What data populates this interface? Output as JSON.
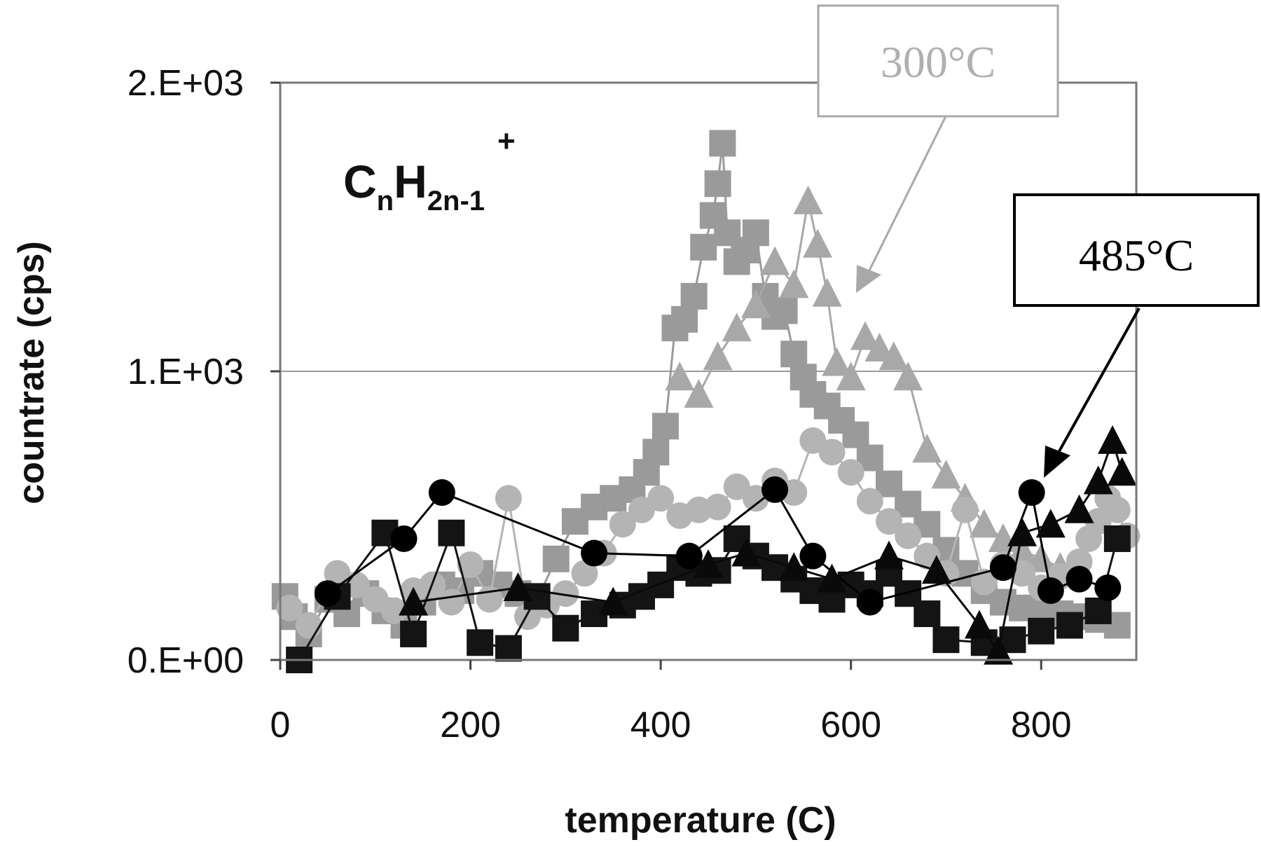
{
  "chart_data": {
    "type": "scatter",
    "title": "",
    "species_label": {
      "base": "C",
      "sub1": "n",
      "mid": "H",
      "sub2": "2n-1",
      "sup": "+"
    },
    "xlabel": "temperature  (C)",
    "ylabel": "countrate  (cps)",
    "xlim": [
      0,
      900
    ],
    "ylim": [
      0,
      2000
    ],
    "x_ticks": [
      0,
      200,
      400,
      600,
      800
    ],
    "x_tick_labels": [
      "0",
      "200",
      "400",
      "600",
      "800"
    ],
    "y_ticks": [
      0,
      1000,
      2000
    ],
    "y_tick_labels": [
      "0.E+00",
      "1.E+03",
      "2.E+03"
    ],
    "grid": "horizontal",
    "annotations": [
      {
        "text": "300°C",
        "color": "#b0b0b0",
        "arrow_to": {
          "x": 610,
          "y": 1280
        }
      },
      {
        "text": "485°C",
        "color": "#000000",
        "arrow_to": {
          "x": 800,
          "y": 640
        }
      }
    ],
    "series": [
      {
        "marker": "square",
        "color": "#9a9a9a",
        "points": [
          [
            5,
            220
          ],
          [
            15,
            150
          ],
          [
            30,
            90
          ],
          [
            50,
            210
          ],
          [
            70,
            160
          ],
          [
            90,
            230
          ],
          [
            110,
            170
          ],
          [
            130,
            120
          ],
          [
            150,
            200
          ],
          [
            170,
            260
          ],
          [
            190,
            240
          ],
          [
            210,
            300
          ],
          [
            230,
            260
          ],
          [
            250,
            230
          ],
          [
            270,
            210
          ],
          [
            290,
            350
          ],
          [
            310,
            480
          ],
          [
            330,
            530
          ],
          [
            350,
            560
          ],
          [
            370,
            590
          ],
          [
            385,
            650
          ],
          [
            395,
            720
          ],
          [
            405,
            810
          ],
          [
            415,
            1150
          ],
          [
            425,
            1180
          ],
          [
            435,
            1260
          ],
          [
            445,
            1430
          ],
          [
            455,
            1540
          ],
          [
            460,
            1650
          ],
          [
            465,
            1790
          ],
          [
            470,
            1480
          ],
          [
            480,
            1380
          ],
          [
            490,
            1420
          ],
          [
            500,
            1480
          ],
          [
            510,
            1260
          ],
          [
            520,
            1190
          ],
          [
            530,
            1210
          ],
          [
            540,
            1060
          ],
          [
            550,
            980
          ],
          [
            560,
            920
          ],
          [
            575,
            880
          ],
          [
            590,
            830
          ],
          [
            605,
            780
          ],
          [
            620,
            700
          ],
          [
            640,
            610
          ],
          [
            660,
            540
          ],
          [
            680,
            470
          ],
          [
            700,
            380
          ],
          [
            720,
            300
          ],
          [
            740,
            240
          ],
          [
            760,
            200
          ],
          [
            780,
            180
          ],
          [
            800,
            170
          ],
          [
            820,
            160
          ],
          [
            840,
            150
          ],
          [
            860,
            140
          ],
          [
            880,
            120
          ]
        ]
      },
      {
        "marker": "triangle",
        "color": "#a8a8a8",
        "points": [
          [
            420,
            980
          ],
          [
            440,
            920
          ],
          [
            460,
            1050
          ],
          [
            480,
            1150
          ],
          [
            500,
            1230
          ],
          [
            520,
            1380
          ],
          [
            540,
            1300
          ],
          [
            555,
            1590
          ],
          [
            565,
            1440
          ],
          [
            575,
            1270
          ],
          [
            585,
            1030
          ],
          [
            600,
            980
          ],
          [
            615,
            1120
          ],
          [
            630,
            1080
          ],
          [
            645,
            1050
          ],
          [
            660,
            980
          ],
          [
            680,
            730
          ],
          [
            700,
            640
          ],
          [
            720,
            560
          ],
          [
            740,
            470
          ],
          [
            760,
            420
          ],
          [
            780,
            380
          ],
          [
            800,
            350
          ],
          [
            820,
            320
          ]
        ]
      },
      {
        "marker": "circle",
        "color": "#b4b4b4",
        "points": [
          [
            10,
            180
          ],
          [
            30,
            120
          ],
          [
            60,
            300
          ],
          [
            80,
            260
          ],
          [
            100,
            210
          ],
          [
            120,
            170
          ],
          [
            140,
            240
          ],
          [
            160,
            260
          ],
          [
            180,
            200
          ],
          [
            200,
            330
          ],
          [
            220,
            210
          ],
          [
            240,
            560
          ],
          [
            260,
            150
          ],
          [
            280,
            190
          ],
          [
            300,
            230
          ],
          [
            320,
            300
          ],
          [
            340,
            370
          ],
          [
            360,
            470
          ],
          [
            380,
            520
          ],
          [
            400,
            560
          ],
          [
            420,
            500
          ],
          [
            440,
            520
          ],
          [
            460,
            530
          ],
          [
            480,
            600
          ],
          [
            500,
            560
          ],
          [
            520,
            620
          ],
          [
            540,
            580
          ],
          [
            560,
            760
          ],
          [
            580,
            720
          ],
          [
            600,
            650
          ],
          [
            620,
            550
          ],
          [
            640,
            480
          ],
          [
            660,
            430
          ],
          [
            680,
            360
          ],
          [
            700,
            300
          ],
          [
            720,
            520
          ],
          [
            740,
            270
          ],
          [
            760,
            330
          ],
          [
            780,
            300
          ],
          [
            800,
            250
          ],
          [
            820,
            290
          ],
          [
            840,
            340
          ],
          [
            850,
            420
          ],
          [
            860,
            480
          ],
          [
            870,
            560
          ],
          [
            880,
            520
          ],
          [
            890,
            430
          ]
        ]
      },
      {
        "marker": "square",
        "color": "#141414",
        "points": [
          [
            20,
            0
          ],
          [
            60,
            220
          ],
          [
            110,
            440
          ],
          [
            140,
            90
          ],
          [
            180,
            440
          ],
          [
            210,
            60
          ],
          [
            240,
            40
          ],
          [
            270,
            220
          ],
          [
            300,
            110
          ],
          [
            330,
            160
          ],
          [
            360,
            190
          ],
          [
            380,
            220
          ],
          [
            400,
            260
          ],
          [
            420,
            320
          ],
          [
            440,
            300
          ],
          [
            460,
            310
          ],
          [
            480,
            420
          ],
          [
            500,
            360
          ],
          [
            520,
            320
          ],
          [
            540,
            280
          ],
          [
            560,
            240
          ],
          [
            580,
            210
          ],
          [
            600,
            260
          ],
          [
            620,
            230
          ],
          [
            640,
            300
          ],
          [
            660,
            230
          ],
          [
            680,
            160
          ],
          [
            700,
            70
          ],
          [
            740,
            60
          ],
          [
            770,
            70
          ],
          [
            800,
            100
          ],
          [
            830,
            120
          ],
          [
            860,
            170
          ],
          [
            880,
            420
          ]
        ]
      },
      {
        "marker": "circle",
        "color": "#000000",
        "points": [
          [
            50,
            230
          ],
          [
            130,
            420
          ],
          [
            170,
            580
          ],
          [
            330,
            370
          ],
          [
            430,
            360
          ],
          [
            520,
            590
          ],
          [
            560,
            360
          ],
          [
            620,
            200
          ],
          [
            760,
            320
          ],
          [
            790,
            580
          ],
          [
            810,
            240
          ],
          [
            840,
            280
          ],
          [
            870,
            250
          ]
        ]
      },
      {
        "marker": "triangle",
        "color": "#0a0a0a",
        "points": [
          [
            140,
            200
          ],
          [
            250,
            250
          ],
          [
            350,
            200
          ],
          [
            450,
            330
          ],
          [
            490,
            370
          ],
          [
            540,
            320
          ],
          [
            580,
            280
          ],
          [
            640,
            360
          ],
          [
            690,
            310
          ],
          [
            735,
            120
          ],
          [
            755,
            30
          ],
          [
            780,
            440
          ],
          [
            810,
            470
          ],
          [
            840,
            520
          ],
          [
            860,
            620
          ],
          [
            875,
            760
          ],
          [
            885,
            650
          ]
        ]
      }
    ]
  }
}
